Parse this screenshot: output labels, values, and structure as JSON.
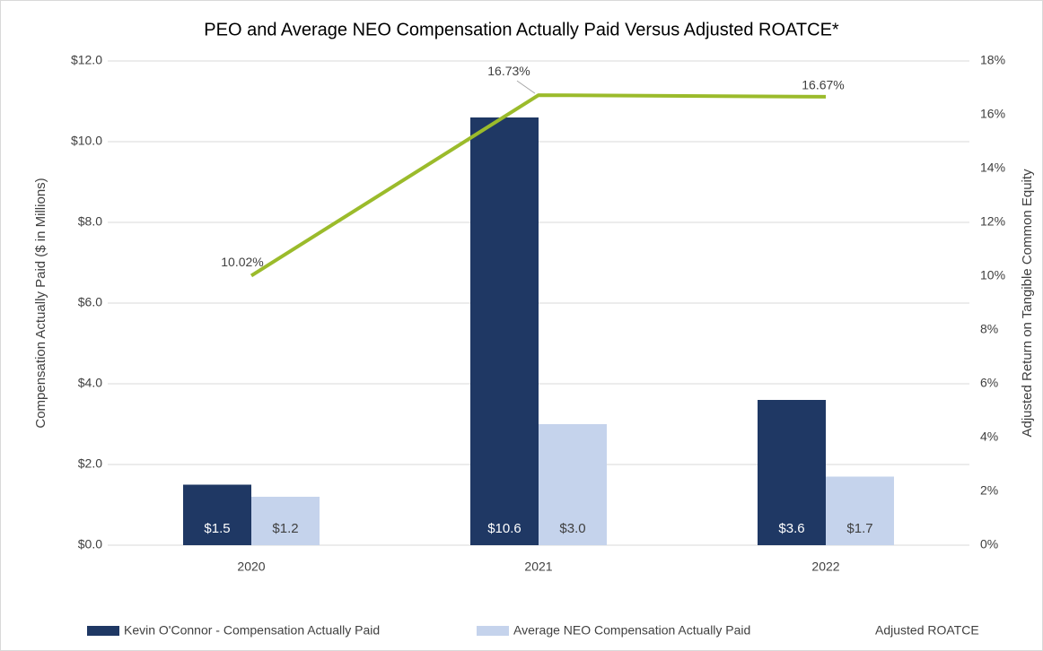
{
  "chart_data": {
    "type": "bar-line",
    "title": "PEO and Average NEO Compensation Actually Paid Versus Adjusted ROATCE*",
    "y_label": "Compensation Actually Paid ($ in Millions)",
    "y2_label": "Adjusted Return on Tangible Common Equity",
    "categories": [
      "2020",
      "2021",
      "2022"
    ],
    "ylim": [
      0,
      12
    ],
    "yticks": [
      {
        "value": 0,
        "label": "$0.0"
      },
      {
        "value": 2,
        "label": "$2.0"
      },
      {
        "value": 4,
        "label": "$4.0"
      },
      {
        "value": 6,
        "label": "$6.0"
      },
      {
        "value": 8,
        "label": "$8.0"
      },
      {
        "value": 10,
        "label": "$10.0"
      },
      {
        "value": 12,
        "label": "$12.0"
      }
    ],
    "y2lim": [
      0,
      18
    ],
    "y2ticks": [
      {
        "value": 0,
        "label": "0%"
      },
      {
        "value": 2,
        "label": "2%"
      },
      {
        "value": 4,
        "label": "4%"
      },
      {
        "value": 6,
        "label": "6%"
      },
      {
        "value": 8,
        "label": "8%"
      },
      {
        "value": 10,
        "label": "10%"
      },
      {
        "value": 12,
        "label": "12%"
      },
      {
        "value": 14,
        "label": "14%"
      },
      {
        "value": 16,
        "label": "16%"
      },
      {
        "value": 18,
        "label": "18%"
      }
    ],
    "grid": true,
    "legend": "bottom",
    "series": [
      {
        "name": "Kevin O'Connor - Compensation Actually Paid",
        "type": "bar",
        "color": "#1f3864",
        "label_color": "#ffffff",
        "values": [
          1.5,
          10.6,
          3.6
        ],
        "value_labels": [
          "$1.5",
          "$10.6",
          "$3.6"
        ]
      },
      {
        "name": "Average NEO Compensation Actually Paid",
        "type": "bar",
        "color": "#c5d3ec",
        "label_color": "#404040",
        "values": [
          1.2,
          3.0,
          1.7
        ],
        "value_labels": [
          "$1.2",
          "$3.0",
          "$1.7"
        ]
      },
      {
        "name": "Adjusted ROATCE",
        "type": "line",
        "axis": "y2",
        "color": "#9bbb2b",
        "values": [
          10.02,
          16.73,
          16.67
        ],
        "value_labels": [
          "10.02%",
          "16.73%",
          "16.67%"
        ]
      }
    ]
  }
}
